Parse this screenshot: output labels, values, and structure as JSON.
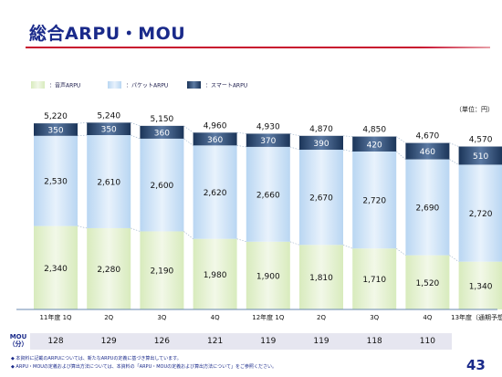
{
  "page": {
    "title": "総合ARPU・MOU",
    "page_number": "43",
    "notes": [
      "◆ 本資料に記載のARPUについては、新たなARPUの定義に基づき算出しています。",
      "◆ ARPU・MOUの定義および算出方法については、本資料の「ARPU・MOUの定義および算出方法について」をご参照ください。"
    ]
  },
  "chart_data": {
    "type": "bar",
    "stacked": true,
    "unit_label": "（単位：円）",
    "categories": [
      "11年度 1Q",
      "2Q",
      "3Q",
      "4Q",
      "12年度 1Q",
      "2Q",
      "3Q",
      "4Q",
      "13年度（通期予想）"
    ],
    "series": [
      {
        "name": "：音声ARPU",
        "color": "#e6f2d4",
        "values": [
          2340,
          2280,
          2190,
          1980,
          1900,
          1810,
          1710,
          1520,
          1340
        ]
      },
      {
        "name": "：パケットARPU",
        "color": "#cfe3f7",
        "values": [
          2530,
          2610,
          2600,
          2620,
          2660,
          2670,
          2720,
          2690,
          2720
        ]
      },
      {
        "name": "：スマートARPU",
        "color": "#24436e",
        "values": [
          350,
          350,
          360,
          360,
          370,
          390,
          420,
          460,
          510
        ]
      }
    ],
    "totals": [
      5220,
      5240,
      5150,
      4960,
      4930,
      4870,
      4850,
      4670,
      4570
    ],
    "value_labels": {
      "voice": [
        "2,340",
        "2,280",
        "2,190",
        "1,980",
        "1,900",
        "1,810",
        "1,710",
        "1,520",
        "1,340"
      ],
      "packet": [
        "2,530",
        "2,610",
        "2,600",
        "2,620",
        "2,660",
        "2,670",
        "2,720",
        "2,690",
        "2,720"
      ],
      "smart": [
        "350",
        "350",
        "360",
        "360",
        "370",
        "390",
        "420",
        "460",
        "510"
      ],
      "totals": [
        "5,220",
        "5,240",
        "5,150",
        "4,960",
        "4,930",
        "4,870",
        "4,850",
        "4,670",
        "4,570"
      ]
    },
    "ylim": [
      0,
      5300
    ],
    "legend_placement": "top-left",
    "grid": false
  },
  "mou": {
    "label": "MOU（分）",
    "values": [
      "128",
      "129",
      "126",
      "121",
      "119",
      "119",
      "118",
      "110"
    ]
  }
}
